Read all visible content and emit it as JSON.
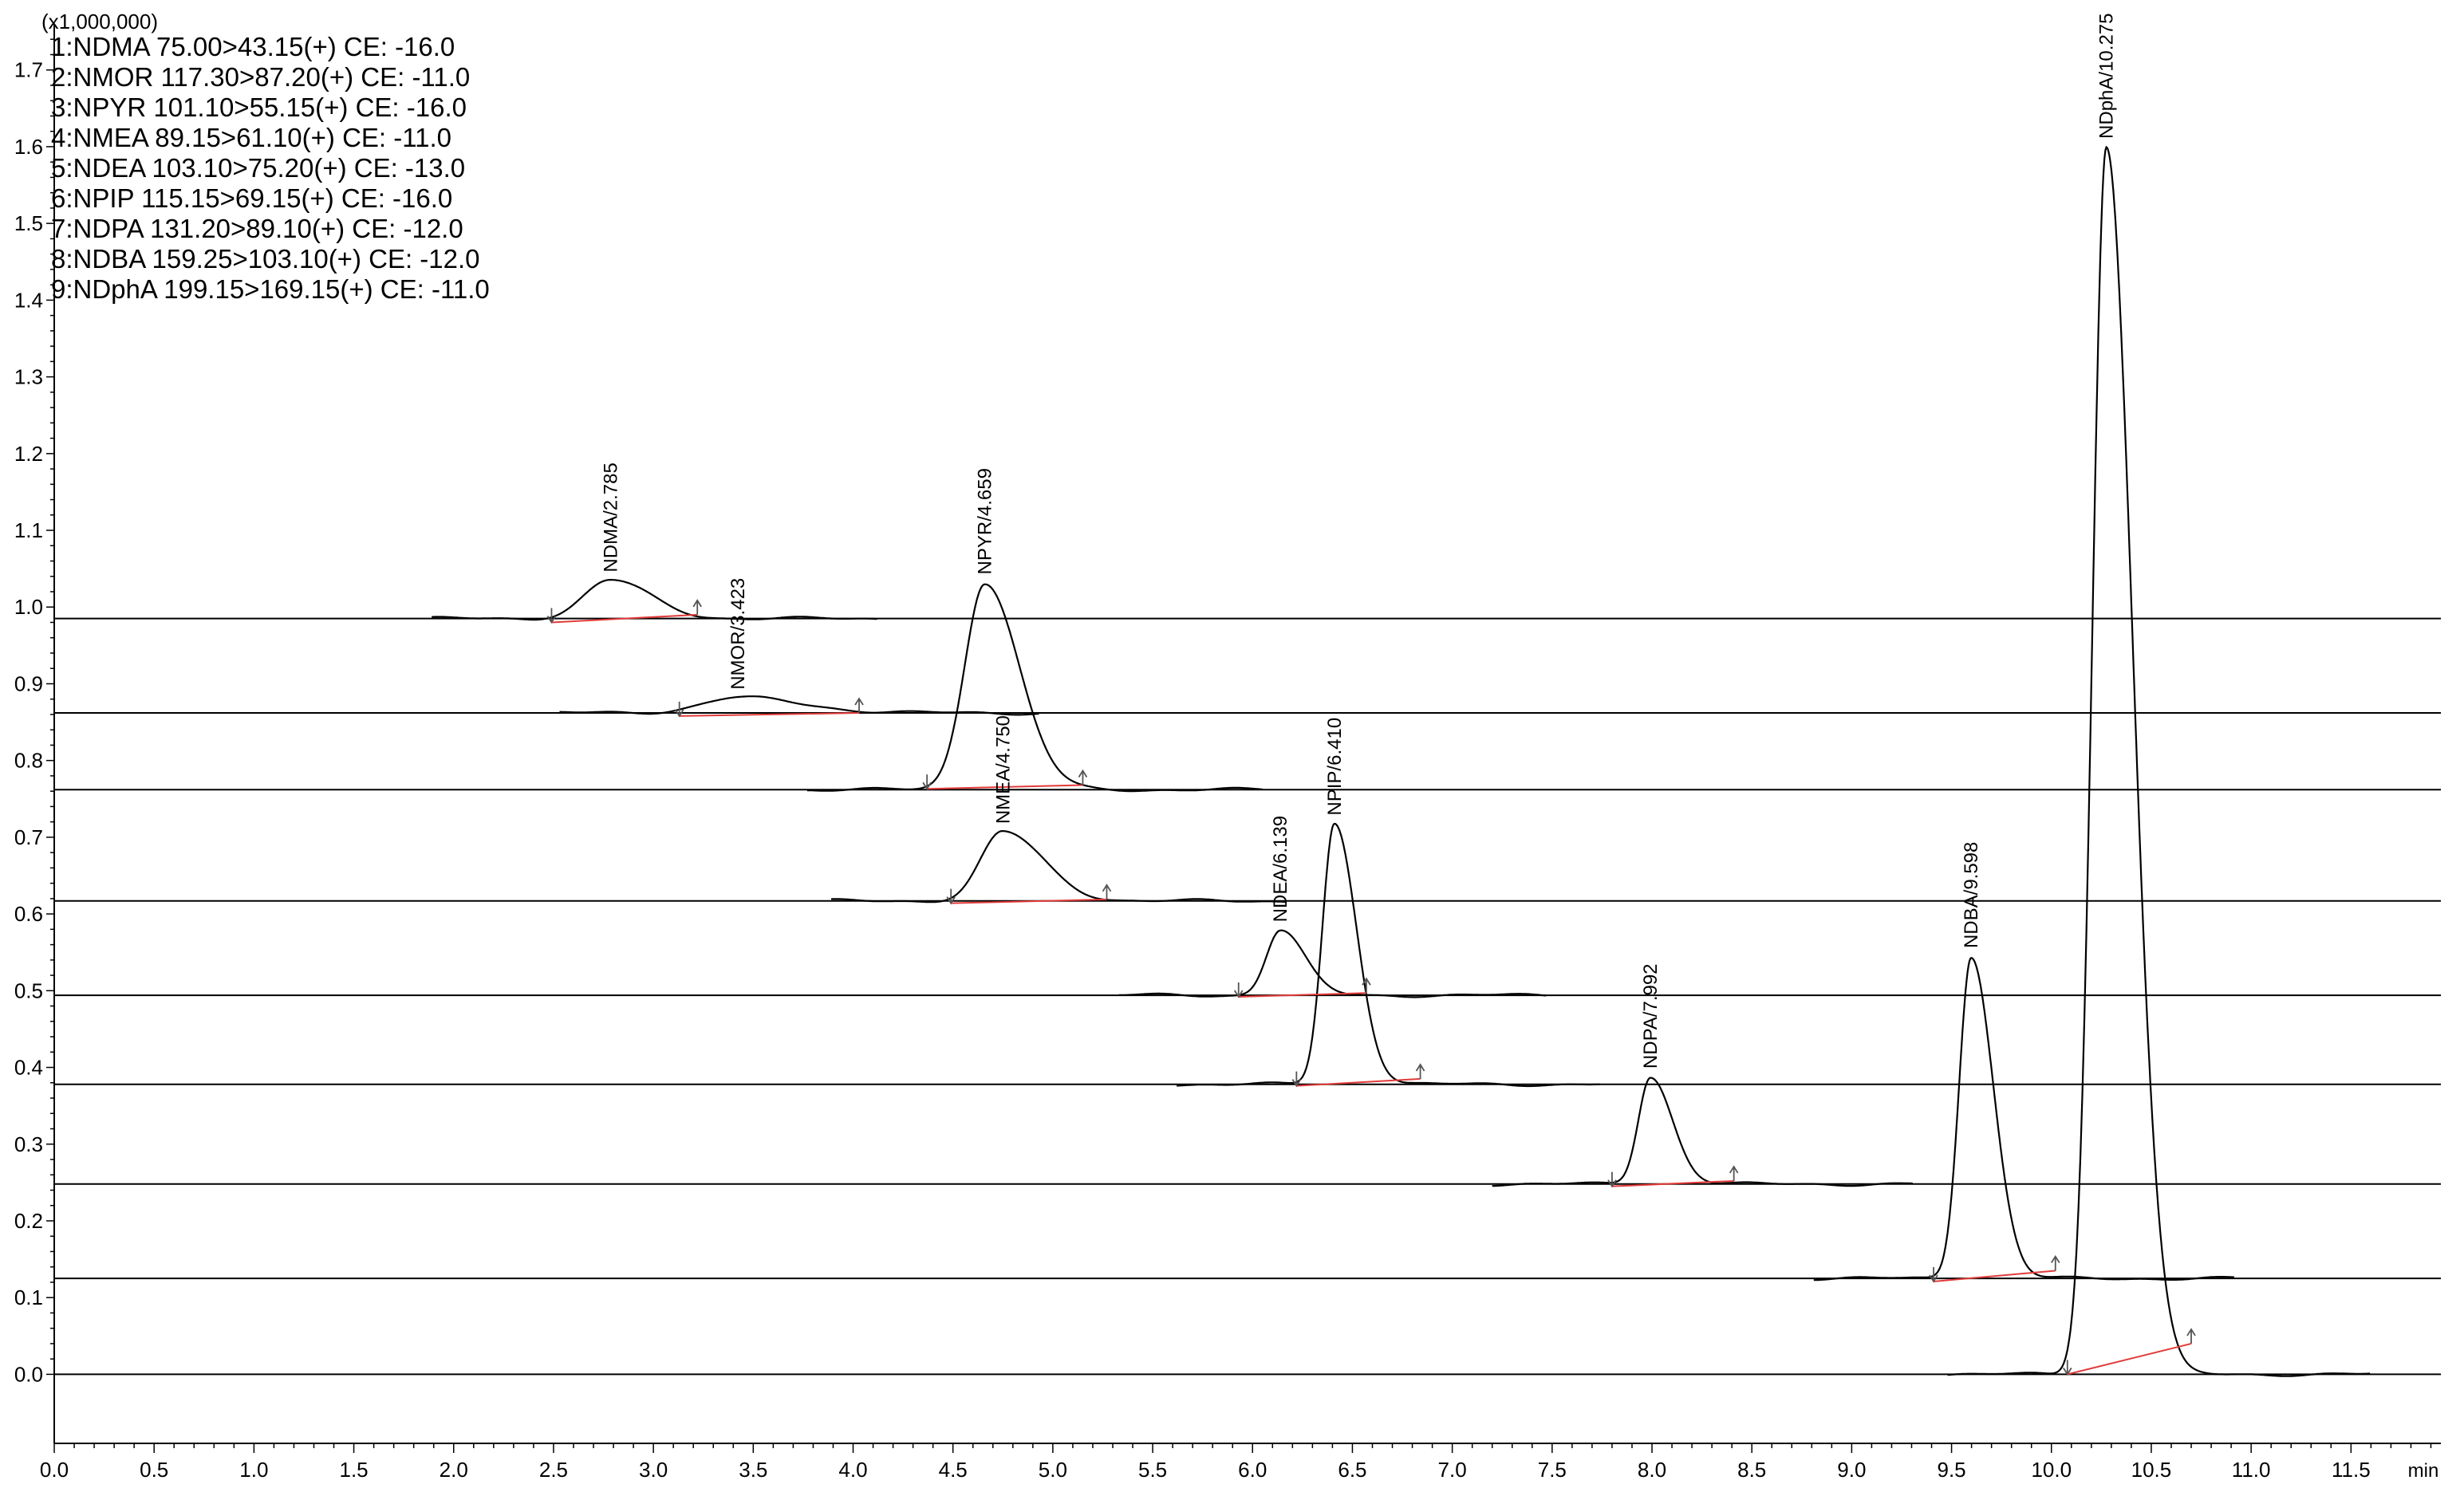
{
  "chart_data": {
    "type": "line",
    "y_multiplier_label": "(x1,000,000)",
    "x_unit_label": "min",
    "xlim": [
      0.0,
      11.95
    ],
    "ylim": [
      -0.09,
      1.76
    ],
    "x_ticks": [
      0.0,
      0.5,
      1.0,
      1.5,
      2.0,
      2.5,
      3.0,
      3.5,
      4.0,
      4.5,
      5.0,
      5.5,
      6.0,
      6.5,
      7.0,
      7.5,
      8.0,
      8.5,
      9.0,
      9.5,
      10.0,
      10.5,
      11.0,
      11.5
    ],
    "x_tick_labels": [
      "0.0",
      "0.5",
      "1.0",
      "1.5",
      "2.0",
      "2.5",
      "3.0",
      "3.5",
      "4.0",
      "4.5",
      "5.0",
      "5.5",
      "6.0",
      "6.5",
      "7.0",
      "7.5",
      "8.0",
      "8.5",
      "9.0",
      "9.5",
      "10.0",
      "10.5",
      "11.0",
      "11.5"
    ],
    "y_ticks": [
      0.0,
      0.1,
      0.2,
      0.3,
      0.4,
      0.5,
      0.6,
      0.7,
      0.8,
      0.9,
      1.0,
      1.1,
      1.2,
      1.3,
      1.4,
      1.5,
      1.6,
      1.7
    ],
    "y_tick_labels": [
      "0.0",
      "0.1",
      "0.2",
      "0.3",
      "0.4",
      "0.5",
      "0.6",
      "0.7",
      "0.8",
      "0.9",
      "1.0",
      "1.1",
      "1.2",
      "1.3",
      "1.4",
      "1.5",
      "1.6",
      "1.7"
    ],
    "legend": [
      "1:NDMA 75.00>43.15(+) CE: -16.0",
      "2:NMOR 117.30>87.20(+) CE: -11.0",
      "3:NPYR 101.10>55.15(+) CE: -16.0",
      "4:NMEA 89.15>61.10(+) CE: -11.0",
      "5:NDEA 103.10>75.20(+) CE: -13.0",
      "6:NPIP 115.15>69.15(+) CE: -16.0",
      "7:NDPA 131.20>89.10(+) CE: -12.0",
      "8:NDBA 159.25>103.10(+) CE: -12.0",
      "9:NDphA 199.15>169.15(+) CE: -11.0"
    ],
    "series": [
      {
        "name": "NDMA",
        "baseline": 0.985,
        "peak_rt": 2.785,
        "height": 0.05,
        "sigma_left": 0.13,
        "sigma_right": 0.2,
        "peak_label": "NDMA/2.785",
        "integration": {
          "start": [
            2.49,
            0.98
          ],
          "end": [
            3.22,
            0.99
          ]
        }
      },
      {
        "name": "NMOR",
        "baseline": 0.862,
        "peak_rt": 3.423,
        "height": 0.02,
        "sigma_left": 0.18,
        "sigma_right": 0.32,
        "peak_label": "NMOR/3.423",
        "integration": {
          "start": [
            3.13,
            0.858
          ],
          "end": [
            4.03,
            0.862
          ]
        }
      },
      {
        "name": "NPYR",
        "baseline": 0.762,
        "peak_rt": 4.659,
        "height": 0.27,
        "sigma_left": 0.1,
        "sigma_right": 0.17,
        "peak_label": "NPYR/4.659",
        "integration": {
          "start": [
            4.37,
            0.763
          ],
          "end": [
            5.15,
            0.768
          ]
        }
      },
      {
        "name": "NMEA",
        "baseline": 0.617,
        "peak_rt": 4.75,
        "height": 0.09,
        "sigma_left": 0.11,
        "sigma_right": 0.2,
        "peak_label": "NMEA/4.750",
        "integration": {
          "start": [
            4.49,
            0.614
          ],
          "end": [
            5.27,
            0.619
          ]
        }
      },
      {
        "name": "NDEA",
        "baseline": 0.494,
        "peak_rt": 6.139,
        "height": 0.085,
        "sigma_left": 0.07,
        "sigma_right": 0.12,
        "peak_label": "NDEA/6.139",
        "integration": {
          "start": [
            5.93,
            0.492
          ],
          "end": [
            6.57,
            0.497
          ]
        }
      },
      {
        "name": "NPIP",
        "baseline": 0.378,
        "peak_rt": 6.41,
        "height": 0.34,
        "sigma_left": 0.06,
        "sigma_right": 0.11,
        "peak_label": "NPIP/6.410",
        "integration": {
          "start": [
            6.22,
            0.376
          ],
          "end": [
            6.84,
            0.385
          ]
        }
      },
      {
        "name": "NDPA",
        "baseline": 0.248,
        "peak_rt": 7.992,
        "height": 0.14,
        "sigma_left": 0.06,
        "sigma_right": 0.11,
        "peak_label": "NDPA/7.992",
        "integration": {
          "start": [
            7.8,
            0.245
          ],
          "end": [
            8.41,
            0.252
          ]
        }
      },
      {
        "name": "NDBA",
        "baseline": 0.125,
        "peak_rt": 9.598,
        "height": 0.42,
        "sigma_left": 0.06,
        "sigma_right": 0.11,
        "peak_label": "NDBA/9.598",
        "integration": {
          "start": [
            9.41,
            0.121
          ],
          "end": [
            10.02,
            0.135
          ]
        }
      },
      {
        "name": "NDphA",
        "baseline": 0.0,
        "peak_rt": 10.275,
        "height": 1.6,
        "sigma_left": 0.07,
        "sigma_right": 0.13,
        "peak_label": "NDphA/10.275",
        "integration": {
          "start": [
            10.08,
            0.0
          ],
          "end": [
            10.7,
            0.04
          ]
        }
      }
    ]
  }
}
